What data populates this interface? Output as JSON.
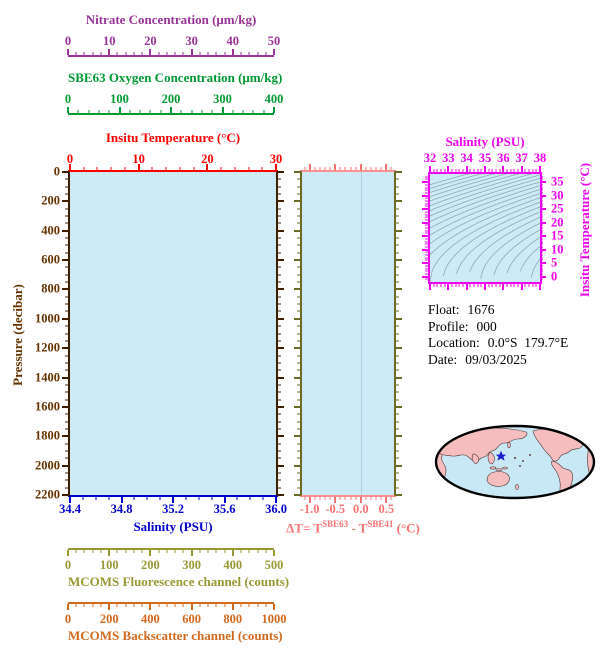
{
  "palette": {
    "background": "#FFFFFF",
    "plot_bg": "#CDEAF7",
    "frame_brown": "#3D1F00",
    "frame_olive": "#6B6B23",
    "frame_salmon": "#FF9090",
    "contour_gray": "#8FA8B0",
    "map_ocean": "#C9E8F5",
    "map_land": "#F5BDBD",
    "map_outline": "#000000",
    "star_blue": "#1A1ACC"
  },
  "axes": {
    "nitrate": {
      "title": "Nitrate Concentration (μm/kg)",
      "ticks": [
        "0",
        "10",
        "20",
        "30",
        "40",
        "50"
      ],
      "color": "#993399"
    },
    "oxygen": {
      "title": "SBE63 Oxygen Concentration (μm/kg)",
      "ticks": [
        "0",
        "100",
        "200",
        "300",
        "400"
      ],
      "color": "#009933"
    },
    "temperature": {
      "title": "Insitu Temperature (°C)",
      "ticks": [
        "0",
        "10",
        "20",
        "30"
      ],
      "color": "#FF0000"
    },
    "pressure": {
      "title": "Pressure (decibar)",
      "ticks": [
        "0",
        "200",
        "400",
        "600",
        "800",
        "1000",
        "1200",
        "1400",
        "1600",
        "1800",
        "2000",
        "2200"
      ],
      "color": "#663300"
    },
    "salinity_main": {
      "title": "Salinity (PSU)",
      "ticks": [
        "34.4",
        "34.8",
        "35.2",
        "35.6",
        "36.0"
      ],
      "color": "#0000CC"
    },
    "delta_t": {
      "label_prefix": "ΔT= T",
      "sup1": "SBE63",
      "mid": " - T",
      "sup2": "SBE41",
      "suffix": " (°C)",
      "ticks": [
        "-1.0",
        "-0.5",
        "0.0",
        "0.5"
      ],
      "color": "#F87272"
    },
    "ts_salinity": {
      "title": "Salinity (PSU)",
      "ticks": [
        "32",
        "33",
        "34",
        "35",
        "36",
        "37",
        "38"
      ],
      "color": "#EE00EE"
    },
    "ts_temperature": {
      "title": "Insitu Temperature (°C)",
      "ticks": [
        "0",
        "5",
        "10",
        "15",
        "20",
        "25",
        "30",
        "35"
      ],
      "color": "#EE00EE"
    },
    "fluorescence": {
      "title": "MCOMS Fluorescence channel (counts)",
      "ticks": [
        "0",
        "100",
        "200",
        "300",
        "400",
        "500"
      ],
      "color": "#999933"
    },
    "backscatter": {
      "title": "MCOMS Backscatter channel (counts)",
      "ticks": [
        "0",
        "200",
        "400",
        "600",
        "800",
        "1000"
      ],
      "color": "#D2691E"
    }
  },
  "float_info": {
    "rows": [
      {
        "label": "Float:",
        "value": "1676"
      },
      {
        "label": "Profile:",
        "value": "000"
      },
      {
        "label": "Location:",
        "value": "0.0°S  179.7°E"
      },
      {
        "label": "Date:",
        "value": "09/03/2025"
      }
    ]
  },
  "chart_data": [
    {
      "type": "line",
      "title": "Main profile panel (empty — no profile data plotted)",
      "xlabel": "Salinity (PSU)",
      "xlim": [
        34.4,
        36.0
      ],
      "ylabel": "Pressure (decibar)",
      "ylim": [
        2200,
        0
      ],
      "secondary_x_axes": [
        {
          "label": "Insitu Temperature (°C)",
          "lim": [
            0,
            30
          ]
        },
        {
          "label": "SBE63 Oxygen Concentration (μm/kg)",
          "lim": [
            0,
            400
          ]
        },
        {
          "label": "Nitrate Concentration (μm/kg)",
          "lim": [
            0,
            50
          ]
        },
        {
          "label": "MCOMS Fluorescence channel (counts)",
          "lim": [
            0,
            500
          ]
        },
        {
          "label": "MCOMS Backscatter channel (counts)",
          "lim": [
            0,
            1000
          ]
        }
      ],
      "grid": false,
      "series": []
    },
    {
      "type": "line",
      "title": "Temperature difference panel (empty)",
      "xlabel": "ΔT= T^SBE63 - T^SBE41 (°C)",
      "xlim": [
        -1.15,
        0.65
      ],
      "ylabel": "Pressure (decibar)",
      "ylim": [
        2200,
        0
      ],
      "grid": false,
      "annotations": [
        "faint vertical reference line at ΔT = 0.0"
      ],
      "series": []
    },
    {
      "type": "line",
      "title": "T-S diagram (isopycnal density contours only, no data)",
      "xlabel": "Salinity (PSU)",
      "xlim": [
        32,
        38
      ],
      "ylabel": "Insitu Temperature (°C)",
      "ylim": [
        -2,
        38
      ],
      "grid": false,
      "annotations": [
        "~22 gray isopycnal contour curves rising left-to-right"
      ],
      "series": []
    }
  ]
}
